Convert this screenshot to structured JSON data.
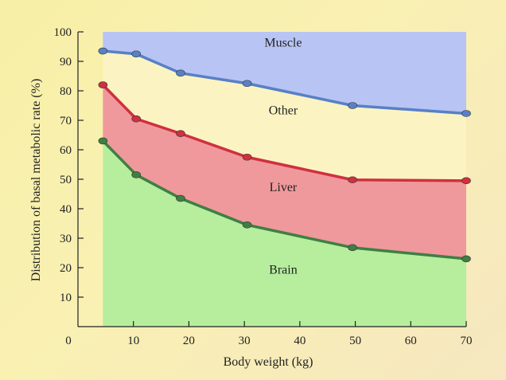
{
  "chart_data": {
    "type": "area",
    "xlabel": "Body weight (kg)",
    "ylabel": "Distribution of basal metabolic rate (%)",
    "xlim": [
      0,
      70
    ],
    "ylim": [
      0,
      100
    ],
    "x_ticks": [
      0,
      10,
      20,
      30,
      40,
      50,
      60,
      70
    ],
    "y_ticks": [
      10,
      20,
      30,
      40,
      50,
      60,
      70,
      80,
      90,
      100
    ],
    "x": [
      4.5,
      10.5,
      18.5,
      30.5,
      49.5,
      70
    ],
    "series": [
      {
        "name": "Brain",
        "boundary": [
          63,
          51.5,
          43.5,
          34.5,
          26.8,
          23
        ],
        "fill": "#b6ee9e",
        "line": "#3f7f43"
      },
      {
        "name": "Liver",
        "boundary": [
          82,
          70.5,
          65.5,
          57.5,
          49.8,
          49.5
        ],
        "fill": "#ef999c",
        "line": "#d03040"
      },
      {
        "name": "Other",
        "boundary": [
          93.5,
          92.5,
          86,
          82.5,
          75,
          72.3
        ],
        "fill": "#fbf4c2",
        "line": "#5880c8"
      },
      {
        "name": "Muscle",
        "boundary": [
          100,
          100,
          100,
          100,
          100,
          100
        ],
        "fill": "#b8c4f3",
        "line": "none"
      }
    ],
    "labels": [
      {
        "text": "Muscle",
        "x": 37,
        "y": 95
      },
      {
        "text": "Other",
        "x": 37,
        "y": 72
      },
      {
        "text": "Liver",
        "x": 37,
        "y": 46
      },
      {
        "text": "Brain",
        "x": 37,
        "y": 18
      }
    ]
  }
}
